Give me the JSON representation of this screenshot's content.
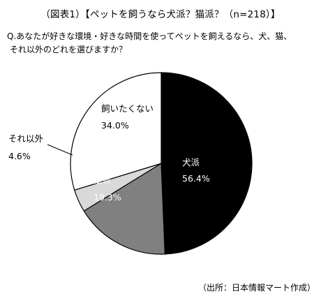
{
  "title": "（図表1）【ペットを飼うなら犬派？猫派？（n=218）】",
  "question": {
    "line1": "Q.あなたが好きな環境・好きな時間を使ってペットを飼えるなら、犬、猫、",
    "line2": "それ以外のどれを選びますか？"
  },
  "source": "（出所：日本情報マート作成）",
  "chart_data": {
    "type": "pie",
    "title": "【ペットを飼うなら犬派？猫派？（n=218）】",
    "slices": [
      {
        "label": "犬派",
        "value": 56.4,
        "value_label": "56.4%",
        "color": "#000000",
        "label_color": "#ffffff"
      },
      {
        "label": "猫派",
        "value": 19.3,
        "value_label": "19.3%",
        "color": "#808080",
        "label_color": "#ffffff"
      },
      {
        "label": "それ以外",
        "value": 4.6,
        "value_label": "4.6%",
        "color": "#d9d9d9",
        "label_color": "#000000"
      },
      {
        "label": "飼いたくない",
        "value": 34.0,
        "value_label": "34.0%",
        "color": "#ffffff",
        "label_color": "#000000"
      }
    ],
    "start_angle": "12 o'clock",
    "direction": "clockwise",
    "slice_border_color": "#000000"
  }
}
